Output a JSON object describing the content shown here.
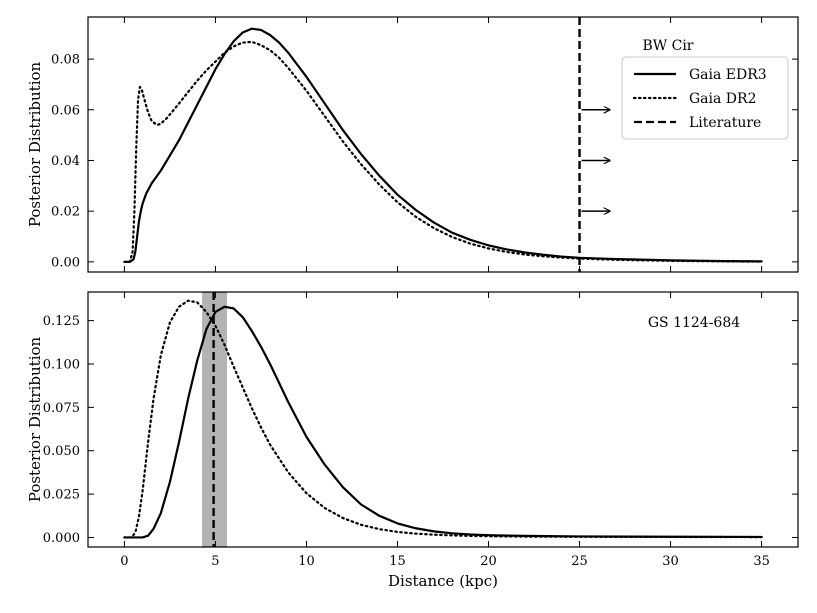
{
  "chart_data": [
    {
      "type": "line",
      "panel_label": "BW Cir",
      "ylabel": "Posterior Distribution",
      "xlabel": "",
      "xlim": [
        -2,
        37
      ],
      "ylim": [
        -0.004,
        0.0966
      ],
      "xticks": [
        0,
        5,
        10,
        15,
        20,
        25,
        30,
        35
      ],
      "yticks": [
        0.0,
        0.02,
        0.04,
        0.06,
        0.08
      ],
      "ytick_labels": [
        "0.00",
        "0.02",
        "0.04",
        "0.06",
        "0.08"
      ],
      "show_xtick_labels": false,
      "legend": {
        "position": "top-right",
        "entries": [
          {
            "label": "Gaia EDR3",
            "style": "solid"
          },
          {
            "label": "Gaia DR2",
            "style": "dotted"
          },
          {
            "label": "Literature",
            "style": "dashed"
          }
        ]
      },
      "vline": {
        "x": 25,
        "style": "dashed",
        "label": "Literature",
        "direction": "lower-limit"
      },
      "arrows_y": [
        0.06,
        0.04,
        0.02
      ],
      "series": [
        {
          "name": "Gaia EDR3",
          "style": "solid",
          "x": [
            0,
            0.3,
            0.5,
            0.6,
            0.7,
            0.8,
            0.9,
            1.0,
            1.2,
            1.5,
            2,
            2.5,
            3,
            3.5,
            4,
            4.5,
            5,
            5.5,
            6,
            6.5,
            7,
            7.5,
            8,
            8.5,
            9,
            10,
            11,
            12,
            13,
            14,
            15,
            16,
            17,
            18,
            19,
            20,
            21,
            22,
            23,
            24,
            25,
            27,
            30,
            33,
            35
          ],
          "y": [
            0.0,
            0.0,
            0.001,
            0.004,
            0.01,
            0.016,
            0.02,
            0.023,
            0.027,
            0.031,
            0.036,
            0.042,
            0.048,
            0.055,
            0.062,
            0.069,
            0.076,
            0.082,
            0.087,
            0.0905,
            0.092,
            0.0915,
            0.0895,
            0.0865,
            0.0825,
            0.073,
            0.0625,
            0.052,
            0.0425,
            0.034,
            0.0265,
            0.0205,
            0.0155,
            0.0115,
            0.0087,
            0.0065,
            0.0049,
            0.0037,
            0.0028,
            0.0021,
            0.0016,
            0.0011,
            0.0006,
            0.0003,
            0.0002
          ]
        },
        {
          "name": "Gaia DR2",
          "style": "dotted",
          "x": [
            0,
            0.3,
            0.45,
            0.55,
            0.65,
            0.75,
            0.85,
            0.95,
            1.1,
            1.3,
            1.5,
            1.8,
            2.0,
            2.3,
            2.6,
            3,
            3.5,
            4,
            4.5,
            5,
            5.5,
            6,
            6.5,
            7,
            7.5,
            8,
            8.5,
            9,
            10,
            11,
            12,
            13,
            14,
            15,
            16,
            17,
            18,
            19,
            20,
            21,
            22,
            23,
            24,
            25,
            27,
            30,
            33,
            35
          ],
          "y": [
            0.0,
            0.0,
            0.004,
            0.02,
            0.045,
            0.064,
            0.069,
            0.068,
            0.064,
            0.059,
            0.0555,
            0.054,
            0.0545,
            0.0565,
            0.059,
            0.0625,
            0.067,
            0.0715,
            0.0755,
            0.079,
            0.0825,
            0.085,
            0.0865,
            0.0868,
            0.0855,
            0.0835,
            0.0805,
            0.0765,
            0.0675,
            0.0575,
            0.0475,
            0.0385,
            0.0305,
            0.0235,
            0.0178,
            0.0133,
            0.0098,
            0.0072,
            0.0053,
            0.0039,
            0.0029,
            0.0022,
            0.0017,
            0.0013,
            0.0008,
            0.0004,
            0.0002,
            0.0001
          ]
        }
      ]
    },
    {
      "type": "line",
      "panel_label": "GS 1124-684",
      "ylabel": "Posterior Distribution",
      "xlabel": "Distance (kpc)",
      "xlim": [
        -2,
        37
      ],
      "ylim": [
        -0.0055,
        0.1415
      ],
      "xticks": [
        0,
        5,
        10,
        15,
        20,
        25,
        30,
        35
      ],
      "xtick_labels": [
        "0",
        "5",
        "10",
        "15",
        "20",
        "25",
        "30",
        "35"
      ],
      "yticks": [
        0.0,
        0.025,
        0.05,
        0.075,
        0.1,
        0.125
      ],
      "ytick_labels": [
        "0.000",
        "0.025",
        "0.050",
        "0.075",
        "0.100",
        "0.125"
      ],
      "show_xtick_labels": true,
      "vline": {
        "x": 4.9,
        "style": "dashed",
        "label": "Literature"
      },
      "band": {
        "x0": 4.3,
        "x1": 5.6,
        "color": "#b3b3b3"
      },
      "series": [
        {
          "name": "Gaia EDR3",
          "style": "solid",
          "x": [
            0,
            1,
            1.3,
            1.6,
            2,
            2.5,
            3,
            3.5,
            4,
            4.5,
            5,
            5.5,
            6,
            6.5,
            7,
            7.5,
            8,
            9,
            10,
            11,
            12,
            13,
            14,
            15,
            16,
            17,
            18,
            19,
            20,
            22,
            25,
            28,
            30,
            35
          ],
          "y": [
            0.0,
            0.0,
            0.001,
            0.005,
            0.014,
            0.032,
            0.055,
            0.08,
            0.102,
            0.12,
            0.13,
            0.133,
            0.132,
            0.127,
            0.119,
            0.11,
            0.1,
            0.078,
            0.058,
            0.042,
            0.029,
            0.019,
            0.0125,
            0.0081,
            0.0053,
            0.0035,
            0.0024,
            0.0017,
            0.0013,
            0.0009,
            0.0006,
            0.0005,
            0.0004,
            0.0003
          ]
        },
        {
          "name": "Gaia DR2",
          "style": "dotted",
          "x": [
            0,
            0.4,
            0.6,
            0.8,
            1,
            1.3,
            1.6,
            2,
            2.5,
            3,
            3.5,
            4,
            4.5,
            5,
            5.5,
            6,
            6.5,
            7,
            7.5,
            8,
            9,
            10,
            11,
            12,
            13,
            14,
            15,
            16,
            17,
            18,
            19,
            20,
            22,
            25,
            28,
            30,
            35
          ],
          "y": [
            0.0,
            0.0,
            0.003,
            0.012,
            0.027,
            0.055,
            0.08,
            0.105,
            0.124,
            0.133,
            0.1365,
            0.1355,
            0.13,
            0.122,
            0.111,
            0.0985,
            0.0865,
            0.0745,
            0.0635,
            0.0535,
            0.0375,
            0.0255,
            0.017,
            0.0112,
            0.0073,
            0.0048,
            0.0032,
            0.0022,
            0.0016,
            0.0012,
            0.0009,
            0.0007,
            0.0005,
            0.0004,
            0.0003,
            0.0003,
            0.0002
          ]
        }
      ]
    }
  ]
}
